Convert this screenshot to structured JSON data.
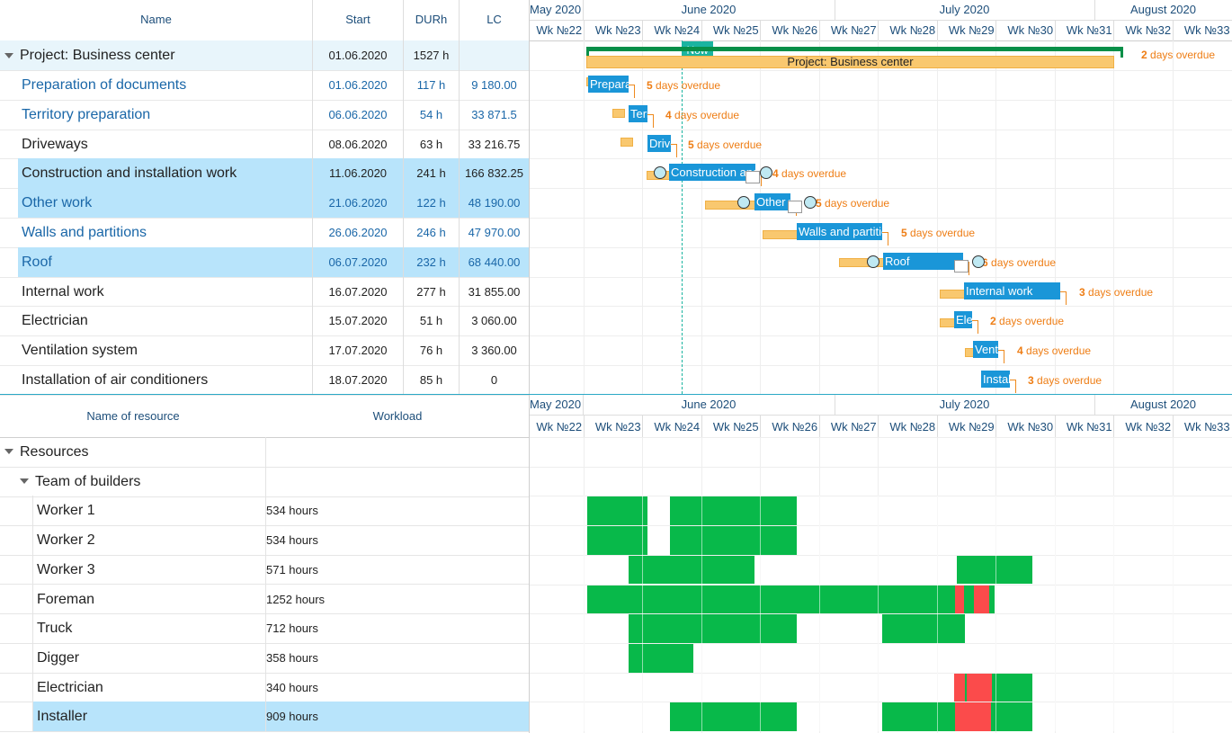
{
  "grid_headers": {
    "name": "Name",
    "start": "Start",
    "dur": "DURh",
    "lc": "LC"
  },
  "timeline": {
    "months": [
      "May 2020",
      "June 2020",
      "July 2020",
      "August 2020"
    ],
    "weeks": [
      "Wk №22",
      "Wk №23",
      "Wk №24",
      "Wk №25",
      "Wk №26",
      "Wk №27",
      "Wk №28",
      "Wk №29",
      "Wk №30",
      "Wk №31",
      "Wk №32",
      "Wk №33"
    ],
    "now_label": "Now"
  },
  "project": {
    "name": "Project: Business center",
    "start": "01.06.2020",
    "dur": "1527 h",
    "lc": "",
    "bar_label": "Project: Business center",
    "overdue_num": "2",
    "overdue_text": " days overdue"
  },
  "tasks": [
    {
      "name": "Preparation of documents",
      "start": "01.06.2020",
      "dur": "117 h",
      "lc": "9 180.00",
      "bar_label": "Preparation of documents",
      "overdue_num": "5",
      "overdue_text": " days overdue"
    },
    {
      "name": "Territory preparation",
      "start": "06.06.2020",
      "dur": "54 h",
      "lc": "33 871.5",
      "bar_label": "Territory preparation",
      "overdue_num": "4",
      "overdue_text": " days overdue"
    },
    {
      "name": "Driveways",
      "start": "08.06.2020",
      "dur": "63 h",
      "lc": "33 216.75",
      "bar_label": "Driveways",
      "overdue_num": "5",
      "overdue_text": " days overdue"
    },
    {
      "name": "Construction and installation work",
      "start": "11.06.2020",
      "dur": "241 h",
      "lc": "166 832.25",
      "bar_label": "Construction and installation work",
      "overdue_num": "4",
      "overdue_text": " days overdue"
    },
    {
      "name": "Other work",
      "start": "21.06.2020",
      "dur": "122 h",
      "lc": "48 190.00",
      "bar_label": "Other work",
      "overdue_num": "5",
      "overdue_text": " days overdue"
    },
    {
      "name": "Walls and partitions",
      "start": "26.06.2020",
      "dur": "246 h",
      "lc": "47 970.00",
      "bar_label": "Walls and partitions",
      "overdue_num": "5",
      "overdue_text": " days overdue"
    },
    {
      "name": "Roof",
      "start": "06.07.2020",
      "dur": "232 h",
      "lc": "68 440.00",
      "bar_label": "Roof",
      "overdue_num": "6",
      "overdue_text": " days overdue"
    },
    {
      "name": "Internal work",
      "start": "16.07.2020",
      "dur": "277 h",
      "lc": "31 855.00",
      "bar_label": "Internal work",
      "overdue_num": "3",
      "overdue_text": " days overdue"
    },
    {
      "name": "Electrician",
      "start": "15.07.2020",
      "dur": "51 h",
      "lc": "3 060.00",
      "bar_label": "Electrician",
      "overdue_num": "2",
      "overdue_text": " days overdue"
    },
    {
      "name": "Ventilation system",
      "start": "17.07.2020",
      "dur": "76 h",
      "lc": "3 360.00",
      "bar_label": "Ventilation system",
      "overdue_num": "4",
      "overdue_text": " days overdue"
    },
    {
      "name": "Installation of air conditioners",
      "start": "18.07.2020",
      "dur": "85 h",
      "lc": "0",
      "bar_label": "Installation of air conditioners",
      "overdue_num": "3",
      "overdue_text": " days overdue"
    }
  ],
  "resource_headers": {
    "name": "Name of resource",
    "workload": "Workload"
  },
  "resource_groups": {
    "root": "Resources",
    "team": "Team of builders"
  },
  "resources": [
    {
      "name": "Worker 1",
      "workload": "534 hours"
    },
    {
      "name": "Worker 2",
      "workload": "534 hours"
    },
    {
      "name": "Worker 3",
      "workload": "571 hours"
    },
    {
      "name": "Foreman",
      "workload": "1252 hours"
    },
    {
      "name": "Truck",
      "workload": "712 hours"
    },
    {
      "name": "Digger",
      "workload": "358 hours"
    },
    {
      "name": "Electrician",
      "workload": "340 hours"
    },
    {
      "name": "Installer",
      "workload": "909 hours"
    }
  ],
  "colors": {
    "bar": "#1a96d8",
    "baseline": "#f9c86f",
    "overdue": "#ee7d14",
    "load_ok": "#08b94a",
    "load_over": "#fb4b4b",
    "selected": "#b8e4fb",
    "header_bg": "#e8f5fb",
    "now": "#1ab4a0"
  }
}
